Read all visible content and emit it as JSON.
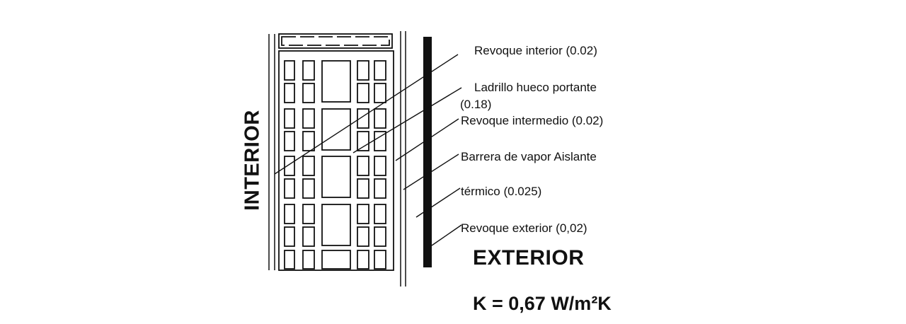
{
  "labels": {
    "interior": "INTERIOR",
    "exterior": "EXTERIOR",
    "k_value": "K = 0,67 W/m²K",
    "layers": [
      "Revoque interior (0.02)",
      "Ladrillo hueco portante",
      "(0.18)",
      "Revoque intermedio (0.02)",
      "Barrera de vapor Aislante",
      "térmico (0.025)",
      "Revoque exterior (0,02)"
    ]
  },
  "colors": {
    "line": "#111111",
    "background": "#ffffff"
  }
}
